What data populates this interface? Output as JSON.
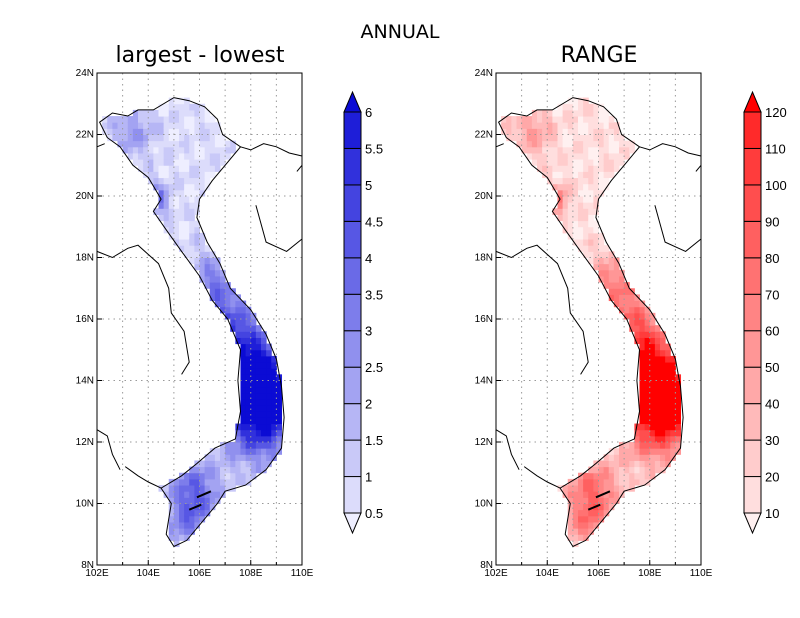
{
  "figure": {
    "title": "ANNUAL"
  },
  "chart_data": [
    {
      "type": "heatmap",
      "title": "largest - lowest",
      "x_tick_labels": [
        "102E",
        "104E",
        "106E",
        "108E",
        "110E"
      ],
      "y_tick_labels": [
        "8N",
        "10N",
        "12N",
        "14N",
        "16N",
        "18N",
        "20N",
        "22N",
        "24N"
      ],
      "xlim": [
        102,
        110
      ],
      "ylim": [
        8,
        24
      ],
      "grid": true,
      "colorbar": {
        "levels": [
          "0.5",
          "1",
          "1.5",
          "2",
          "2.5",
          "3",
          "3.5",
          "4",
          "4.5",
          "5",
          "5.5",
          "6"
        ],
        "colors": [
          "#eeeeff",
          "#dcdcfb",
          "#c9c9f8",
          "#b6b6f5",
          "#a3a3f2",
          "#9090ee",
          "#7d7deb",
          "#6a6ae7",
          "#5757e4",
          "#4444e0",
          "#3131dc",
          "#1e1ed8",
          "#0b0bd4"
        ],
        "end_arrows": true
      }
    },
    {
      "type": "heatmap",
      "title": "RANGE",
      "x_tick_labels": [
        "102E",
        "104E",
        "106E",
        "108E",
        "110E"
      ],
      "y_tick_labels": [
        "8N",
        "10N",
        "12N",
        "14N",
        "16N",
        "18N",
        "20N",
        "22N",
        "24N"
      ],
      "xlim": [
        102,
        110
      ],
      "ylim": [
        8,
        24
      ],
      "grid": true,
      "colorbar": {
        "levels": [
          "10",
          "20",
          "30",
          "40",
          "50",
          "60",
          "70",
          "80",
          "90",
          "100",
          "110",
          "120"
        ],
        "colors": [
          "#fff0f0",
          "#ffdede",
          "#ffcccc",
          "#ffbaba",
          "#ffa8a8",
          "#ff9696",
          "#ff8484",
          "#ff7272",
          "#ff6060",
          "#ff4e4e",
          "#ff3c3c",
          "#ff2a2a",
          "#ff0000"
        ],
        "end_arrows": true
      }
    }
  ]
}
